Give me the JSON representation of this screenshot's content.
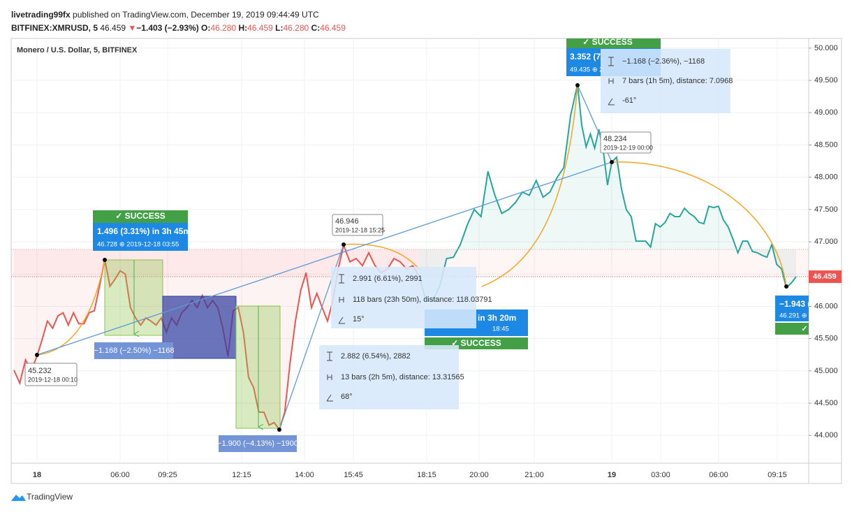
{
  "header": {
    "author": "livetrading99fx",
    "published": "published on TradingView.com, December 19, 2019 09:44:49 UTC",
    "symbol": "BITFINEX:XMRUSD, 5",
    "last": "46.459",
    "arrow": "▼",
    "change": "−1.403 (−2.93%)",
    "o_label": "O:",
    "open": "46.280",
    "h_label": "H:",
    "high": "46.459",
    "l_label": "L:",
    "low": "46.280",
    "c_label": "C:",
    "close": "46.459"
  },
  "chart_data": {
    "type": "line",
    "title": "Monero / U.S. Dollar, 5, BITFINEX",
    "x_labels": [
      "18",
      "06:00",
      "09:25",
      "12:15",
      "14:00",
      "15:45",
      "18:15",
      "20:00",
      "21:00",
      "19",
      "03:00",
      "06:00",
      "09:15"
    ],
    "series": [
      {
        "color": "#ef5350",
        "values": [
          45.01,
          44.81,
          45.17,
          45.01,
          45.23,
          45.49,
          45.77,
          45.66,
          45.85,
          45.9,
          45.71,
          45.9,
          45.73,
          45.73,
          45.9,
          45.93,
          46.31,
          46.728,
          46.31,
          46.42,
          46.55,
          46.5,
          45.98,
          45.82,
          45.71,
          45.82,
          45.77,
          45.71,
          45.82,
          45.6,
          45.82,
          45.71,
          45.9,
          45.98,
          46.09,
          45.98,
          46.17,
          45.98,
          46.09,
          45.98,
          45.66,
          45.22,
          45.93,
          45.98,
          45.6,
          44.9,
          44.74,
          44.36,
          44.36,
          44.16,
          44.2,
          44.09,
          44.36,
          45.12,
          45.77,
          46.25,
          46.52,
          45.98,
          46.2,
          45.98,
          45.77,
          46.09,
          46.58,
          46.946,
          46.69,
          46.74,
          46.63,
          46.83,
          46.63,
          46.52,
          46.58,
          46.74,
          46.69,
          46.58,
          46.63,
          46.47,
          null,
          null,
          null,
          null,
          null,
          null,
          null,
          null,
          null,
          null,
          null,
          null,
          null,
          null,
          null,
          null,
          null,
          null,
          null,
          null,
          null,
          null,
          null,
          null,
          null,
          null,
          null,
          null,
          null,
          null,
          null,
          null,
          null,
          null,
          null,
          null,
          null,
          null,
          null,
          null,
          null,
          null,
          null,
          null,
          null,
          null,
          null,
          null,
          null,
          null,
          null,
          null,
          null,
          null,
          null,
          null,
          null,
          null,
          null,
          null,
          null,
          null,
          null,
          null,
          null,
          null,
          null,
          null,
          null
        ]
      },
      {
        "color": "#26a69a",
        "values": [
          null,
          null,
          null,
          null,
          null,
          null,
          null,
          null,
          null,
          null,
          null,
          null,
          null,
          null,
          null,
          null,
          null,
          null,
          null,
          null,
          null,
          null,
          null,
          null,
          null,
          null,
          null,
          null,
          null,
          null,
          null,
          null,
          null,
          null,
          null,
          null,
          null,
          null,
          null,
          null,
          null,
          null,
          null,
          null,
          null,
          null,
          null,
          null,
          null,
          null,
          null,
          null,
          null,
          null,
          null,
          null,
          null,
          null,
          null,
          null,
          null,
          null,
          null,
          null,
          null,
          null,
          null,
          null,
          null,
          null,
          null,
          null,
          null,
          null,
          null,
          46.47,
          46.09,
          46.09,
          46.31,
          46.74,
          46.76,
          46.96,
          47.26,
          47.5,
          47.39,
          48.09,
          47.72,
          47.44,
          47.5,
          47.61,
          47.77,
          47.72,
          47.95,
          47.69,
          47.77,
          47.99,
          48.15,
          48.96,
          49.435,
          48.8,
          48.47,
          48.67,
          48.45,
          48.74,
          48.42,
          47.88,
          48.234,
          48.31,
          47.82,
          47.5,
          47.39,
          47.01,
          47.01,
          47.01,
          46.92,
          47.28,
          47.23,
          47.3,
          47.44,
          47.39,
          47.39,
          47.52,
          47.44,
          47.39,
          47.3,
          47.28,
          47.55,
          47.53,
          47.55,
          47.34,
          47.23,
          47.04,
          46.83,
          47.01,
          47.01,
          46.85,
          46.83,
          46.79,
          46.76,
          46.96,
          46.65,
          46.58,
          46.291,
          46.36,
          46.459
        ]
      }
    ],
    "ylim": [
      43.57,
      50.15
    ],
    "yticks": [
      {
        "value": 44,
        "label": "44.000"
      },
      {
        "value": 44.5,
        "label": "44.500"
      },
      {
        "value": 45,
        "label": "45.000"
      },
      {
        "value": 45.5,
        "label": "45.500"
      },
      {
        "value": 46,
        "label": "46.000"
      },
      {
        "value": 46.5,
        "label": "46.500"
      },
      {
        "value": 47,
        "label": "47.000"
      },
      {
        "value": 47.5,
        "label": "47.500"
      },
      {
        "value": 48,
        "label": "48.000"
      },
      {
        "value": 48.5,
        "label": "48.500"
      },
      {
        "value": 49,
        "label": "49.000"
      },
      {
        "value": 49.5,
        "label": "49.500"
      },
      {
        "value": 50,
        "label": "50.000"
      }
    ],
    "price_line": 46.459,
    "price_line_color": "#ef5350",
    "grid": true
  },
  "annotations": {
    "success": [
      "✓ SUCCESS",
      "✓ SUCCESS",
      "✓ SUCCESS",
      "✓"
    ],
    "forecast_1": [
      "1.496 (3.31%) in 3h 45m",
      "46.728 ⊕ 2019-12-18  03:55"
    ],
    "forecast_2": [
      "3.352 (7.",
      "49.435 ⊕ 2"
    ],
    "forecast_3": [
      "in 3h 20m",
      "18:45"
    ],
    "forecast_4": [
      "−1.943 (",
      "46.291 ⊕ 2"
    ],
    "range_1": "−1.168 (−2.50%) −1168",
    "range_2": "−1.900 (−4.13%) −1900",
    "measure_1": [
      "−1.168 (−2.36%), −1168",
      "7 bars (1h 5m), distance: 7.0968",
      "-61°"
    ],
    "measure_2": [
      "2.991 (6.61%), 2991",
      "118 bars (23h 50m), distance: 118.03791",
      "15°"
    ],
    "measure_3": [
      "2.882 (6.54%), 2882",
      "13 bars (2h 5m), distance: 13.31565",
      "68°"
    ],
    "point_1": [
      "45.232",
      "2019-12-18 00:10"
    ],
    "point_2": [
      "46.946",
      "2019-12-18 15:25"
    ],
    "point_3": [
      "48.234",
      "2019-12-19 00:00"
    ]
  },
  "footer": "TradingView"
}
